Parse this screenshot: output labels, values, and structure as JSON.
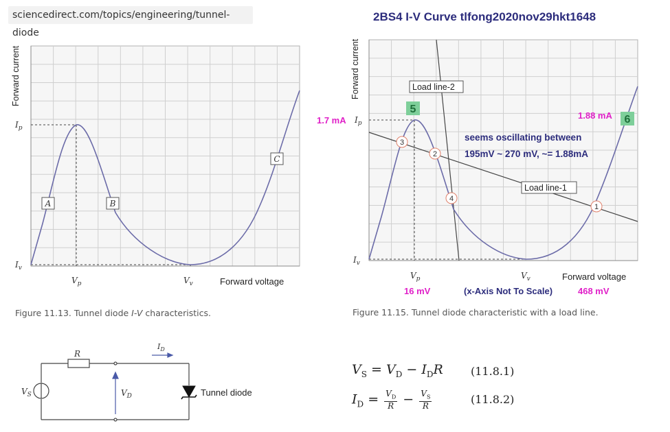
{
  "browser": {
    "url": "sciencedirect.com/topics/engineering/tunnel-diode"
  },
  "left_figure": {
    "y_axis_label": "Forward current",
    "x_axis_label": "Forward voltage",
    "ip_label": "I",
    "ip_sub": "p",
    "iv_label": "I",
    "iv_sub": "v",
    "vp_label": "V",
    "vp_sub": "p",
    "vv_label": "V",
    "vv_sub": "v",
    "region_a": "A",
    "region_b": "B",
    "region_c": "C",
    "caption_prefix": "Figure 11.13. Tunnel diode ",
    "caption_italic": "I-V",
    "caption_suffix": " characteristics."
  },
  "right_figure": {
    "title": "2BS4 I-V Curve  tlfong2020nov29hkt1648",
    "y_axis_label": "Forward current",
    "x_axis_label": "Forward voltage",
    "load_line_1": "Load line-1",
    "load_line_2": "Load line-2",
    "ip_value": "1.7 mA",
    "peak_value": "1.88 mA",
    "vp_value": "16 mV",
    "vv_value": "468 mV",
    "note_scale": "(x-Axis Not To Scale)",
    "annotation_line1": "seems oscillating between",
    "annotation_line2": "195mV ~ 270 mV, ~= 1.88mA",
    "badge_5": "5",
    "badge_6": "6",
    "point_1": "1",
    "point_2": "2",
    "point_3": "3",
    "point_4": "4",
    "ip_label": "I",
    "ip_sub": "p",
    "iv_label": "I",
    "iv_sub": "v",
    "vp_label": "V",
    "vp_sub": "p",
    "vv_label": "V",
    "vv_sub": "v",
    "caption": "Figure 11.15. Tunnel diode characteristic with a load line."
  },
  "circuit": {
    "resistor_label": "R",
    "source_label": "V",
    "source_sub": "S",
    "diode_voltage_label": "V",
    "diode_voltage_sub": "D",
    "current_label": "I",
    "current_sub": "D",
    "diode_name": "Tunnel diode"
  },
  "equations": {
    "eq1_left": "V",
    "eq1_left_sub": "S",
    "eq1_rhs_a": "V",
    "eq1_rhs_a_sub": "D",
    "eq1_rhs_b": "I",
    "eq1_rhs_b_sub": "D",
    "eq1_rhs_c": "R",
    "eq1_num": "(11.8.1)",
    "eq2_left": "I",
    "eq2_left_sub": "D",
    "eq2_f1_top": "V",
    "eq2_f1_top_sub": "D",
    "eq2_f1_bot": "R",
    "eq2_f2_top": "V",
    "eq2_f2_top_sub": "S",
    "eq2_f2_bot": "R",
    "eq2_num": "(11.8.2)",
    "equals": "=",
    "minus": "−"
  },
  "colors": {
    "curve": "#6b6ba8",
    "grid": "#cccccc",
    "magenta": "#e020c8",
    "navy": "#2c2c7c",
    "badge": "#7ecf9a",
    "circle_outline": "#e0806a"
  }
}
